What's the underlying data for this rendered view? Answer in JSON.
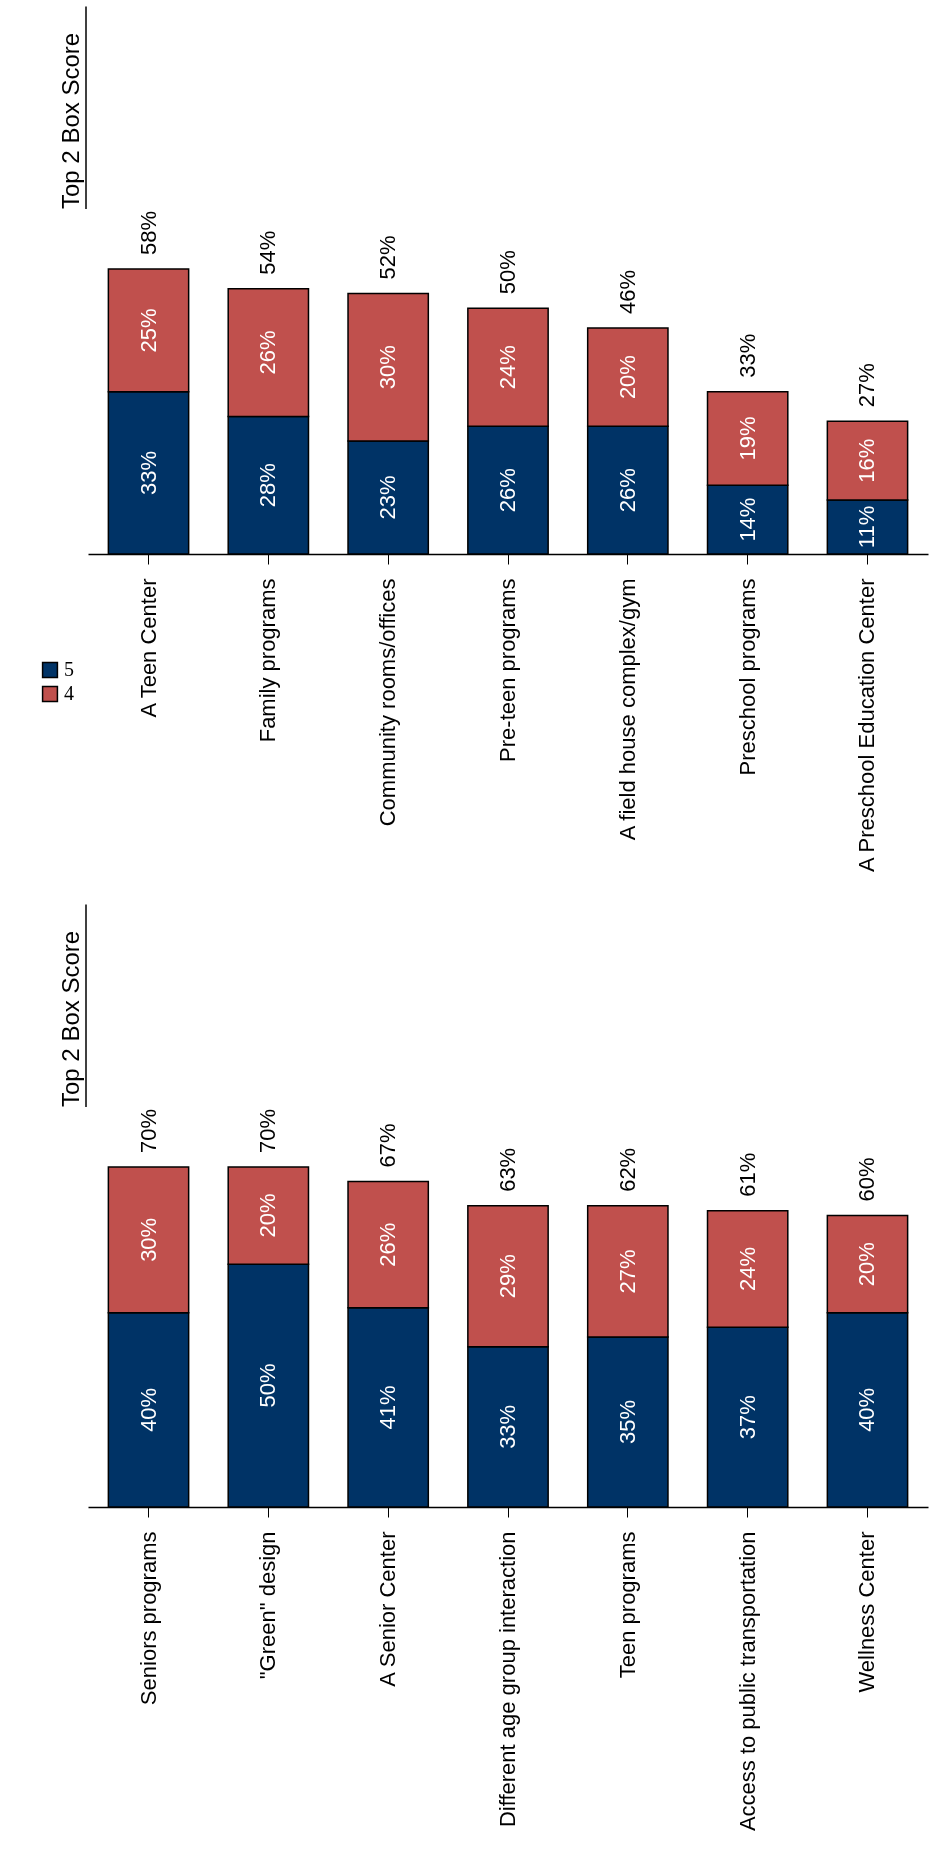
{
  "chart_data": [
    {
      "type": "bar",
      "stacked": true,
      "data_labels": false,
      "tick_labels": "x",
      "grid": false,
      "legend": "bottom left",
      "categories": [
        "A Teen Center",
        "Family programs",
        "Community rooms/offices",
        "Pre-teen programs",
        "A field house complex/gym",
        "Preschool programs",
        "A Preschool Education Center"
      ],
      "series": [
        {
          "name": "5",
          "color": "#003366",
          "values": [
            33,
            28,
            23,
            26,
            26,
            14,
            11
          ],
          "value_labels": [
            "33%",
            "28%",
            "23%",
            "26%",
            "26%",
            "14%",
            "11%"
          ]
        },
        {
          "name": "4",
          "color": "#c0504d",
          "values": [
            25,
            26,
            30,
            24,
            20,
            19,
            16
          ],
          "value_labels": [
            "25%",
            "26%",
            "30%",
            "24%",
            "20%",
            "19%",
            "16%"
          ]
        }
      ],
      "totals": [
        "58%",
        "54%",
        "52%",
        "50%",
        "46%",
        "33%",
        "27%"
      ],
      "annotations": [
        "Top 2 Box Score"
      ]
    },
    {
      "type": "bar",
      "stacked": true,
      "data_labels": false,
      "tick_labels": "x",
      "grid": false,
      "legend": "top left",
      "categories": [
        "Seniors programs",
        "\"Green\" design",
        "A Senior Center",
        "Different age group interaction",
        "Teen programs",
        "Access to public transportation",
        "Wellness Center"
      ],
      "series": [
        {
          "name": "5",
          "color": "#003366",
          "values": [
            40,
            50,
            41,
            33,
            35,
            37,
            40
          ],
          "value_labels": [
            "40%",
            "50%",
            "41%",
            "33%",
            "35%",
            "37%",
            "40%"
          ]
        },
        {
          "name": "4",
          "color": "#c0504d",
          "values": [
            30,
            20,
            26,
            29,
            27,
            24,
            20
          ],
          "value_labels": [
            "30%",
            "20%",
            "26%",
            "29%",
            "27%",
            "24%",
            "20%"
          ]
        }
      ],
      "totals": [
        "70%",
        "70%",
        "67%",
        "63%",
        "62%",
        "61%",
        "60%"
      ],
      "annotations": [
        "Top 2 Box Score"
      ]
    }
  ]
}
